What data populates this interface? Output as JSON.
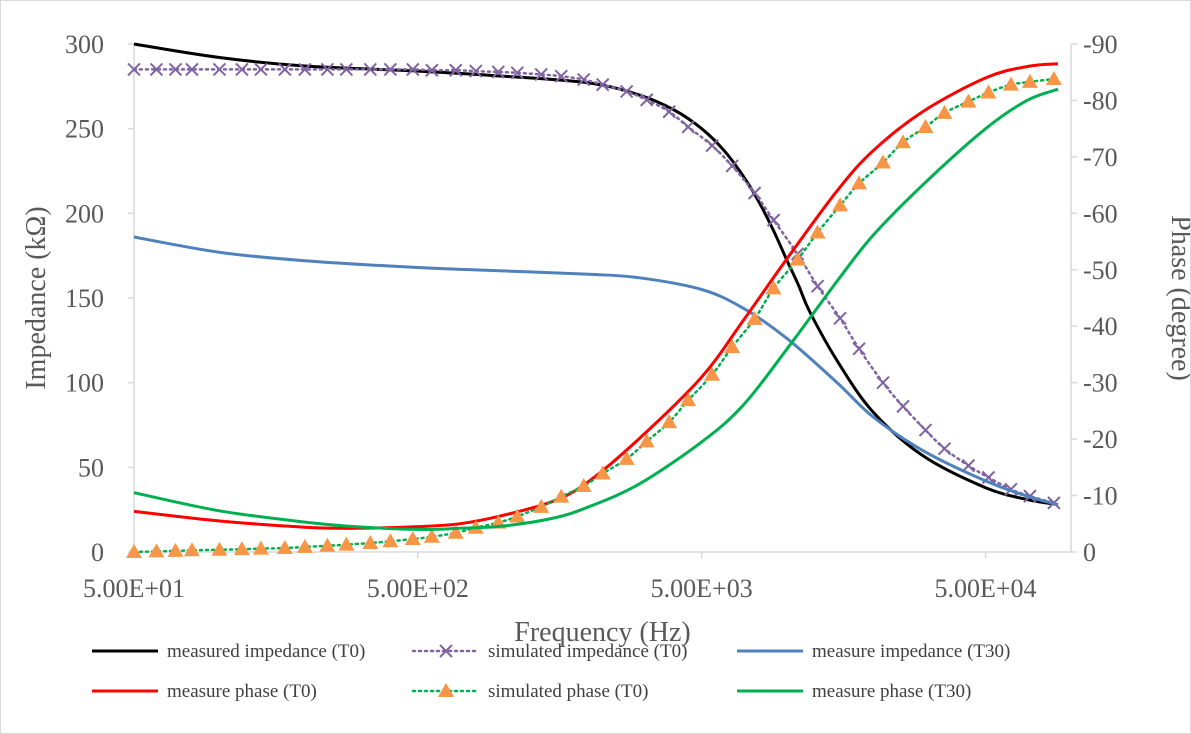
{
  "chart_data": {
    "type": "line",
    "x_scale": "log",
    "x_axis": {
      "label": "Frequency (Hz)",
      "range": [
        50,
        100000
      ],
      "ticks": [
        50,
        500,
        5000,
        50000
      ],
      "tick_labels": [
        "5.00E+01",
        "5.00E+02",
        "5.00E+03",
        "5.00E+04"
      ]
    },
    "y_axis_left": {
      "label": "Impedance (kΩ)",
      "range": [
        0,
        300
      ],
      "ticks": [
        0,
        50,
        100,
        150,
        200,
        250,
        300
      ],
      "tick_labels": [
        "0",
        "50",
        "100",
        "150",
        "200",
        "250",
        "300"
      ]
    },
    "y_axis_right": {
      "label": "Phase (degree)",
      "range": [
        0,
        -90
      ],
      "ticks": [
        0,
        -10,
        -20,
        -30,
        -40,
        -50,
        -60,
        -70,
        -80,
        -90
      ],
      "tick_labels": [
        "0",
        "-10",
        "-20",
        "-30",
        "-40",
        "-50",
        "-60",
        "-70",
        "-80",
        "-90"
      ]
    },
    "grid": false,
    "legend_position": "bottom",
    "series": [
      {
        "name": "measured impedance (T0)",
        "axis": "left",
        "color": "#000000",
        "style": "solid",
        "marker": "none",
        "x": [
          50,
          100,
          200,
          500,
          1000,
          2000,
          3000,
          4000,
          5000,
          6000,
          7000,
          8000,
          9000,
          10000,
          11000,
          12000,
          15000,
          20000,
          30000,
          50000,
          70000,
          90000
        ],
        "y": [
          300,
          292,
          287,
          284,
          281,
          277,
          270,
          261,
          250,
          237,
          222,
          206,
          189,
          172,
          157,
          142,
          113,
          83,
          57,
          38,
          31,
          28
        ]
      },
      {
        "name": "simulated impedance (T0)",
        "axis": "left",
        "color": "#8064a2",
        "style": "dotted",
        "marker": "x",
        "x": [
          50,
          60,
          70,
          80,
          100,
          120,
          140,
          170,
          200,
          240,
          280,
          340,
          400,
          480,
          560,
          680,
          800,
          960,
          1120,
          1360,
          1600,
          1920,
          2240,
          2720,
          3200,
          3840,
          4480,
          5440,
          6400,
          7680,
          8960,
          10880,
          12800,
          15360,
          17920,
          21760,
          25600,
          30720,
          35840,
          43520,
          51200,
          61440,
          71680,
          87040
        ],
        "y": [
          285,
          285,
          285,
          285,
          285,
          285,
          285,
          285,
          285,
          285,
          285,
          285,
          285,
          285,
          284.5,
          284.5,
          284,
          283.5,
          283,
          282,
          281,
          279,
          276,
          272,
          267,
          260,
          251,
          240,
          228,
          212,
          196,
          176,
          157,
          138,
          120,
          100,
          86,
          72,
          61,
          51,
          44,
          37,
          33,
          29
        ]
      },
      {
        "name": "measure impedance (T30)",
        "axis": "left",
        "color": "#4f81bd",
        "style": "solid",
        "marker": "none",
        "x": [
          50,
          100,
          200,
          500,
          1000,
          2000,
          3000,
          5000,
          7000,
          10000,
          15000,
          20000,
          30000,
          50000,
          70000,
          90000
        ],
        "y": [
          186,
          177,
          172,
          168,
          166,
          164,
          162,
          155,
          144,
          126,
          100,
          80,
          60,
          42,
          33,
          28
        ]
      },
      {
        "name": "measure phase (T0)",
        "axis": "right",
        "color": "#ff0000",
        "style": "solid",
        "marker": "none",
        "x": [
          50,
          100,
          200,
          300,
          500,
          700,
          1000,
          1500,
          2000,
          3000,
          5000,
          7000,
          10000,
          15000,
          20000,
          30000,
          50000,
          70000,
          90000
        ],
        "y": [
          -7.2,
          -5.5,
          -4.4,
          -4.2,
          -4.5,
          -5,
          -6.5,
          -9,
          -12.5,
          -20,
          -31,
          -41,
          -52,
          -64,
          -71,
          -78,
          -84,
          -86,
          -86.5
        ]
      },
      {
        "name": "simulated phase (T0)",
        "axis": "right",
        "color": "#00b050",
        "style": "dotted",
        "marker": "triangle",
        "marker_color": "#f79646",
        "x": [
          50,
          60,
          70,
          80,
          100,
          120,
          140,
          170,
          200,
          240,
          280,
          340,
          400,
          480,
          560,
          680,
          800,
          960,
          1120,
          1360,
          1600,
          1920,
          2240,
          2720,
          3200,
          3840,
          4480,
          5440,
          6400,
          7680,
          8960,
          10880,
          12800,
          15360,
          17920,
          21760,
          25600,
          30720,
          35840,
          43520,
          51200,
          61440,
          71680,
          87040
        ],
        "y": [
          0,
          -0.1,
          -0.2,
          -0.3,
          -0.4,
          -0.5,
          -0.6,
          -0.7,
          -0.9,
          -1.1,
          -1.3,
          -1.6,
          -1.9,
          -2.3,
          -2.7,
          -3.4,
          -4.3,
          -5.2,
          -6.3,
          -8,
          -9.8,
          -11.7,
          -13.9,
          -16.5,
          -19.6,
          -23,
          -26.9,
          -31.4,
          -36.3,
          -41.3,
          -46.7,
          -51.8,
          -56.6,
          -61.4,
          -65.3,
          -69,
          -72.6,
          -75.3,
          -77.8,
          -79.8,
          -81.4,
          -82.8,
          -83.3,
          -83.8
        ]
      },
      {
        "name": "measure phase (T30)",
        "axis": "right",
        "color": "#00b050",
        "style": "solid",
        "marker": "none",
        "x": [
          50,
          100,
          200,
          300,
          500,
          700,
          1000,
          1500,
          2000,
          3000,
          5000,
          7000,
          10000,
          15000,
          20000,
          30000,
          50000,
          70000,
          90000
        ],
        "y": [
          -10.5,
          -7.3,
          -5.3,
          -4.5,
          -4,
          -4.2,
          -4.6,
          -6,
          -8,
          -12,
          -19.5,
          -26,
          -36,
          -48,
          -56,
          -65,
          -75,
          -80,
          -82
        ]
      }
    ]
  }
}
